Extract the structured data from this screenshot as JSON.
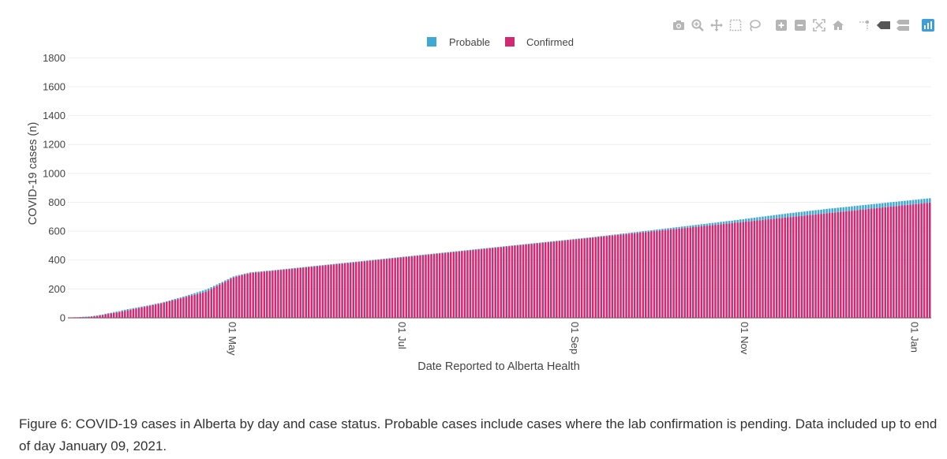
{
  "toolbar": {
    "icons": [
      "camera-icon",
      "zoom-icon",
      "pan-icon",
      "box-select-icon",
      "lasso-select-icon",
      "zoom-in-icon",
      "zoom-out-icon",
      "autoscale-icon",
      "reset-axes-icon",
      "spike-lines-icon",
      "hover-closest-icon",
      "hover-compare-icon",
      "plotly-logo-icon"
    ]
  },
  "colors": {
    "probable": "#3fa9d6",
    "confirmed": "#d12a73",
    "grid": "#eeeeee",
    "toolbar_icon": "#b5b5b5",
    "logo": "#3f9ddb"
  },
  "chart_data": {
    "type": "bar",
    "stacked": true,
    "xlabel": "Date Reported to Alberta Health",
    "ylabel": "COVID-19 cases (n)",
    "ylim": [
      0,
      1900
    ],
    "yticks": [
      0,
      200,
      400,
      600,
      800,
      1000,
      1200,
      1400,
      1600,
      1800
    ],
    "x_start": "2020-03-06",
    "x_end": "2021-01-09",
    "xticks": [
      {
        "date": "2020-05-01",
        "label": "01 May"
      },
      {
        "date": "2020-07-01",
        "label": "01 Jul"
      },
      {
        "date": "2020-09-01",
        "label": "01 Sep"
      },
      {
        "date": "2020-11-01",
        "label": "01 Nov"
      },
      {
        "date": "2021-01-01",
        "label": "01 Jan"
      }
    ],
    "legend": {
      "placement": "top-center",
      "entries": [
        "Probable",
        "Confirmed"
      ]
    },
    "grid": true,
    "series": [
      {
        "name": "Probable",
        "values": [
          0,
          0,
          0,
          0,
          0,
          1,
          1,
          1,
          0,
          2,
          1,
          2,
          3,
          4,
          5,
          5,
          6,
          6,
          6,
          8,
          8,
          8,
          7,
          7,
          6,
          6,
          6,
          5,
          5,
          5,
          5,
          5,
          5,
          5,
          5,
          5,
          5,
          6,
          6,
          6,
          6,
          7,
          7,
          9,
          10,
          11,
          12,
          13,
          14,
          15,
          13,
          12,
          11,
          11,
          10,
          9,
          9,
          8,
          8,
          7,
          7,
          7,
          6,
          6,
          5,
          5,
          5,
          5,
          4,
          4,
          4,
          4,
          3,
          3,
          3,
          3,
          3,
          3,
          3,
          3,
          3,
          3,
          3,
          3,
          3,
          3,
          3,
          3,
          3,
          3,
          3,
          3,
          3,
          3,
          3,
          3,
          3,
          3,
          3,
          3,
          3,
          3,
          3,
          3,
          3,
          3,
          3,
          3,
          3,
          3,
          3,
          3,
          3,
          3,
          3,
          3,
          3,
          3,
          3,
          3,
          3,
          3,
          3,
          3,
          3,
          3,
          3,
          3,
          3,
          3,
          3,
          3,
          3,
          3,
          3,
          3,
          3,
          3,
          3,
          3,
          3,
          3,
          3,
          3,
          3,
          3,
          3,
          3,
          3,
          3,
          3,
          3,
          3,
          3,
          3,
          3,
          3,
          3,
          3,
          3,
          3,
          3,
          3,
          3,
          3,
          3,
          3,
          3,
          3,
          3,
          3,
          3,
          3,
          3,
          3,
          3,
          3,
          3,
          3,
          3,
          3,
          3,
          3,
          3,
          3,
          3,
          3,
          3,
          3,
          3,
          4,
          4,
          4,
          4,
          5,
          5,
          5,
          5,
          6,
          6,
          6,
          6,
          7,
          7,
          7,
          7,
          8,
          8,
          8,
          8,
          9,
          9,
          9,
          10,
          10,
          10,
          10,
          11,
          11,
          11,
          12,
          12,
          12,
          12,
          13,
          13,
          13,
          14,
          14,
          14,
          15,
          15,
          15,
          16,
          16,
          16,
          17,
          17,
          17,
          18,
          18,
          19,
          19,
          20,
          20,
          21,
          21,
          22,
          22,
          23,
          23,
          24,
          24,
          25,
          25,
          26,
          26,
          26,
          27,
          27,
          27,
          28,
          28,
          28,
          28,
          29,
          29,
          29,
          29,
          29,
          29,
          30,
          30,
          30,
          30,
          30,
          30,
          30,
          30,
          30,
          30,
          30,
          30,
          30,
          30,
          30,
          30,
          30,
          30,
          30,
          30,
          30,
          30,
          30,
          30,
          30,
          30,
          30,
          30,
          30,
          30,
          30,
          30,
          30,
          30,
          30,
          30,
          30,
          30,
          30,
          30,
          30,
          30,
          30,
          30,
          30,
          30,
          30,
          30,
          30,
          30,
          30,
          30,
          30,
          30,
          30,
          30,
          30,
          30,
          30,
          30,
          30,
          30,
          30,
          30,
          30,
          30,
          30,
          30,
          30,
          30
        ]
      },
      {
        "name": "Confirmed",
        "values": [
          3,
          3,
          4,
          4,
          5,
          6,
          7,
          8,
          10,
          12,
          15,
          18,
          20,
          24,
          27,
          30,
          34,
          37,
          40,
          44,
          48,
          52,
          56,
          60,
          64,
          68,
          72,
          76,
          80,
          84,
          88,
          92,
          96,
          100,
          105,
          110,
          115,
          120,
          125,
          130,
          135,
          140,
          145,
          150,
          155,
          160,
          165,
          170,
          175,
          180,
          190,
          200,
          210,
          220,
          230,
          240,
          250,
          260,
          270,
          280,
          285,
          290,
          295,
          300,
          305,
          310,
          312,
          314,
          316,
          318,
          320,
          322,
          324,
          326,
          328,
          330,
          332,
          334,
          336,
          338,
          340,
          342,
          344,
          346,
          348,
          350,
          352,
          354,
          356,
          358,
          360,
          362,
          364,
          366,
          368,
          370,
          372,
          374,
          376,
          378,
          380,
          382,
          384,
          386,
          388,
          390,
          392,
          394,
          396,
          398,
          400,
          402,
          404,
          406,
          408,
          410,
          412,
          414,
          416,
          418,
          420,
          422,
          424,
          426,
          428,
          430,
          432,
          434,
          436,
          438,
          440,
          442,
          444,
          446,
          448,
          450,
          452,
          454,
          456,
          458,
          460,
          462,
          464,
          466,
          468,
          470,
          472,
          474,
          476,
          478,
          480,
          482,
          484,
          486,
          488,
          490,
          492,
          494,
          496,
          498,
          500,
          502,
          504,
          506,
          508,
          510,
          512,
          514,
          516,
          518,
          520,
          522,
          524,
          526,
          528,
          530,
          532,
          534,
          536,
          538,
          540,
          542,
          544,
          546,
          548,
          550,
          552,
          554,
          556,
          558,
          560,
          562,
          564,
          566,
          568,
          570,
          572,
          574,
          576,
          578,
          580,
          582,
          584,
          586,
          588,
          590,
          592,
          594,
          596,
          598,
          600,
          602,
          604,
          606,
          608,
          610,
          612,
          614,
          616,
          618,
          620,
          622,
          624,
          626,
          628,
          630,
          632,
          634,
          636,
          638,
          640,
          642,
          644,
          646,
          648,
          650,
          652,
          654,
          656,
          658,
          660,
          662,
          664,
          666,
          668,
          670,
          672,
          674,
          676,
          678,
          680,
          682,
          684,
          686,
          688,
          690,
          692,
          694,
          696,
          698,
          700,
          702,
          704,
          706,
          708,
          710,
          712,
          714,
          716,
          718,
          720,
          722,
          724,
          726,
          728,
          730,
          732,
          734,
          736,
          738,
          740,
          742,
          744,
          746,
          748,
          750,
          752,
          754,
          756,
          758,
          760,
          762,
          764,
          766,
          768,
          770,
          772,
          774,
          776,
          778,
          780,
          782,
          784,
          786,
          788,
          790,
          792,
          794,
          796,
          798,
          800,
          802,
          804,
          806,
          808,
          810,
          812,
          814,
          816,
          818,
          820
        ]
      }
    ]
  },
  "caption": "Figure 6: COVID-19 cases in Alberta by day and case status. Probable cases include cases where the lab confirmation is pending. Data included up to end of day January 09, 2021."
}
